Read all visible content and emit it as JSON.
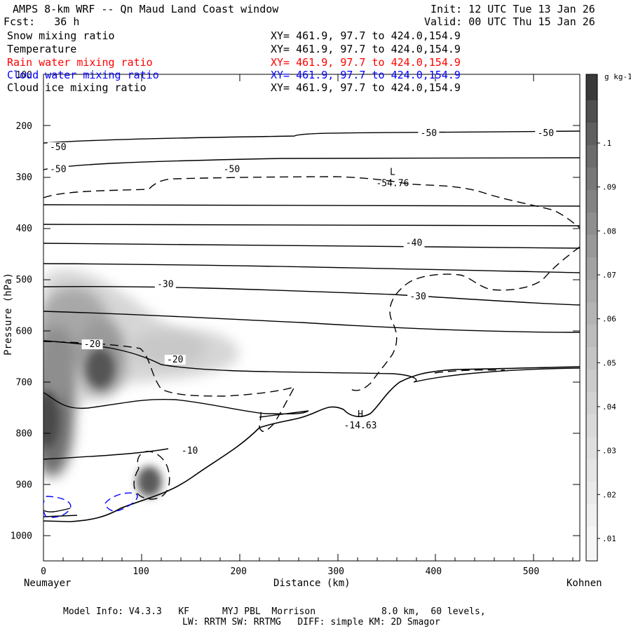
{
  "header": {
    "title": "AMPS 8-km WRF -- Qn Maud Land Coast window",
    "init": "Init: 12 UTC Tue 13 Jan 26",
    "fcst": "Fcst:   36 h",
    "valid": "Valid: 00 UTC Thu 15 Jan 26"
  },
  "fields": [
    {
      "name": "Snow mixing ratio",
      "xy": "XY= 461.9, 97.7 to 424.0,154.9",
      "color": "#000000"
    },
    {
      "name": "Temperature",
      "xy": "XY= 461.9, 97.7 to 424.0,154.9",
      "color": "#000000"
    },
    {
      "name": "Rain water mixing ratio",
      "xy": "XY= 461.9, 97.7 to 424.0,154.9",
      "color": "#ff0000"
    },
    {
      "name": "Cloud water mixing ratio",
      "xy": "XY= 461.9, 97.7 to 424.0,154.9",
      "color": "#0000ff"
    },
    {
      "name": "Cloud ice mixing ratio",
      "xy": "XY= 461.9, 97.7 to 424.0,154.9",
      "color": "#000000"
    }
  ],
  "footer": {
    "line1": "Model Info: V4.3.3   KF      MYJ PBL  Morrison            8.0 km,  60 levels,",
    "line2": "LW: RRTM SW: RRTMG   DIFF: simple KM: 2D Smagor"
  },
  "chart_data": {
    "type": "contour",
    "xlabel": "Distance (km)",
    "ylabel": "Pressure (hPa)",
    "xlim": [
      0,
      550
    ],
    "ylim": [
      1050,
      100
    ],
    "x_ticks": [
      0,
      100,
      200,
      300,
      400,
      500
    ],
    "y_ticks": [
      100,
      200,
      300,
      400,
      500,
      600,
      700,
      800,
      900,
      1000
    ],
    "x_end_labels": {
      "left": "Neumayer",
      "right": "Kohnen"
    },
    "colorbar": {
      "units": "g kg-1",
      "levels": [
        0.01,
        0.02,
        0.03,
        0.04,
        0.05,
        0.06,
        0.07,
        0.08,
        0.09,
        0.1
      ]
    },
    "temperature_labels": [
      {
        "text": "-50",
        "x": 15,
        "p": 245
      },
      {
        "text": "-50",
        "x": 395,
        "p": 218
      },
      {
        "text": "-50",
        "x": 515,
        "p": 218
      },
      {
        "text": "-50",
        "x": 15,
        "p": 288
      },
      {
        "text": "-50",
        "x": 193,
        "p": 288
      },
      {
        "text": "-40",
        "x": 380,
        "p": 432
      },
      {
        "text": "-30",
        "x": 125,
        "p": 513
      },
      {
        "text": "-30",
        "x": 384,
        "p": 537
      },
      {
        "text": "-20",
        "x": 50,
        "p": 630
      },
      {
        "text": "-20",
        "x": 135,
        "p": 660
      },
      {
        "text": "-10",
        "x": 150,
        "p": 838
      }
    ],
    "extrema": [
      {
        "symbol": "L",
        "value": "-54.76",
        "x": 358,
        "p": 302
      },
      {
        "symbol": "H",
        "value": "-14.63",
        "x": 325,
        "p": 775
      }
    ],
    "terrain": [
      {
        "x": 0,
        "p": 972
      },
      {
        "x": 30,
        "p": 973
      },
      {
        "x": 60,
        "p": 968
      },
      {
        "x": 100,
        "p": 940
      },
      {
        "x": 150,
        "p": 903
      },
      {
        "x": 200,
        "p": 840
      },
      {
        "x": 220,
        "p": 798
      },
      {
        "x": 270,
        "p": 775
      },
      {
        "x": 290,
        "p": 765
      },
      {
        "x": 310,
        "p": 785
      },
      {
        "x": 330,
        "p": 775
      },
      {
        "x": 360,
        "p": 720
      },
      {
        "x": 400,
        "p": 685
      },
      {
        "x": 500,
        "p": 678
      },
      {
        "x": 550,
        "p": 675
      }
    ]
  }
}
